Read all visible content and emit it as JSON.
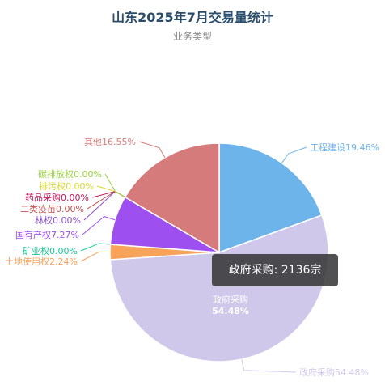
{
  "chart_data": {
    "type": "pie",
    "title": "山东2025年7月交易量统计",
    "subtitle": "业务类型",
    "slices": [
      {
        "label": "工程建设",
        "percent": "19.46%",
        "value": 19.46,
        "color": "#6cb4ea"
      },
      {
        "label": "政府采购",
        "percent": "54.48%",
        "value": 54.48,
        "color": "#d0c8eb"
      },
      {
        "label": "土地使用权",
        "percent": "2.24%",
        "value": 2.24,
        "color": "#f7a35c"
      },
      {
        "label": "矿业权",
        "percent": "0.00%",
        "value": 0.0,
        "color": "#19c999"
      },
      {
        "label": "国有产权",
        "percent": "7.27%",
        "value": 7.27,
        "color": "#9d4ff0"
      },
      {
        "label": "林权",
        "percent": "0.00%",
        "value": 0.0,
        "color": "#8b4fce"
      },
      {
        "label": "二类疫苗",
        "percent": "0.00%",
        "value": 0.0,
        "color": "#c0504d"
      },
      {
        "label": "药品采购",
        "percent": "0.00%",
        "value": 0.0,
        "color": "#c2185b"
      },
      {
        "label": "排污权",
        "percent": "0.00%",
        "value": 0.0,
        "color": "#d9d92a"
      },
      {
        "label": "碳排放权",
        "percent": "0.00%",
        "value": 0.0,
        "color": "#98d23c"
      },
      {
        "label": "其他",
        "percent": "16.55%",
        "value": 16.55,
        "color": "#d67b7b"
      }
    ],
    "inner_label": {
      "name": "政府采购",
      "percent": "54.48%"
    },
    "tooltip": {
      "name": "政府采购",
      "value": "2136宗"
    }
  }
}
